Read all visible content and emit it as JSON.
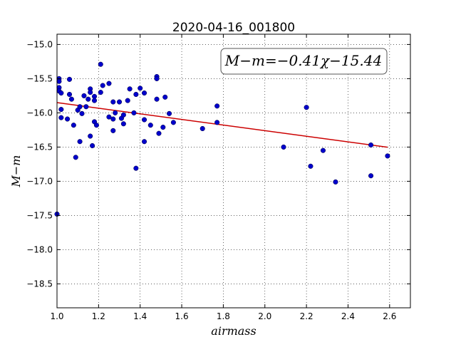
{
  "chart_data": {
    "type": "scatter",
    "title": "2020-04-16_001800",
    "xlabel": "airmass",
    "ylabel": "M−m",
    "xlim": [
      1.0,
      2.7
    ],
    "ylim": [
      -18.85,
      -14.85
    ],
    "y_inverted": true,
    "grid": true,
    "xticks": [
      "1.0",
      "1.2",
      "1.4",
      "1.6",
      "1.8",
      "2.0",
      "2.2",
      "2.4",
      "2.6"
    ],
    "yticks": [
      "−15.0",
      "−15.5",
      "−16.0",
      "−16.5",
      "−17.0",
      "−17.5",
      "−18.0",
      "−18.5"
    ],
    "annotation": "M−m=−0.41χ−15.44",
    "fit": {
      "slope": -0.41,
      "intercept": -15.44,
      "x_range": [
        1.0,
        2.59
      ],
      "color": "#cc0000"
    },
    "point_color": "#0000cc",
    "points": [
      {
        "x": 1.0,
        "y": -17.48
      },
      {
        "x": 1.01,
        "y": -15.5
      },
      {
        "x": 1.01,
        "y": -15.54
      },
      {
        "x": 1.01,
        "y": -15.63
      },
      {
        "x": 1.01,
        "y": -15.68
      },
      {
        "x": 1.02,
        "y": -15.71
      },
      {
        "x": 1.02,
        "y": -15.95
      },
      {
        "x": 1.02,
        "y": -16.07
      },
      {
        "x": 1.05,
        "y": -16.09
      },
      {
        "x": 1.06,
        "y": -15.51
      },
      {
        "x": 1.06,
        "y": -15.73
      },
      {
        "x": 1.07,
        "y": -15.8
      },
      {
        "x": 1.08,
        "y": -16.18
      },
      {
        "x": 1.09,
        "y": -16.65
      },
      {
        "x": 1.1,
        "y": -15.96
      },
      {
        "x": 1.11,
        "y": -15.91
      },
      {
        "x": 1.11,
        "y": -16.42
      },
      {
        "x": 1.12,
        "y": -16.01
      },
      {
        "x": 1.13,
        "y": -15.75
      },
      {
        "x": 1.14,
        "y": -15.91
      },
      {
        "x": 1.15,
        "y": -15.8
      },
      {
        "x": 1.16,
        "y": -15.65
      },
      {
        "x": 1.16,
        "y": -15.7
      },
      {
        "x": 1.16,
        "y": -16.34
      },
      {
        "x": 1.17,
        "y": -16.48
      },
      {
        "x": 1.18,
        "y": -15.76
      },
      {
        "x": 1.18,
        "y": -15.82
      },
      {
        "x": 1.18,
        "y": -16.13
      },
      {
        "x": 1.19,
        "y": -16.18
      },
      {
        "x": 1.21,
        "y": -15.29
      },
      {
        "x": 1.21,
        "y": -15.7
      },
      {
        "x": 1.22,
        "y": -15.6
      },
      {
        "x": 1.25,
        "y": -15.57
      },
      {
        "x": 1.25,
        "y": -16.06
      },
      {
        "x": 1.27,
        "y": -15.84
      },
      {
        "x": 1.27,
        "y": -16.09
      },
      {
        "x": 1.27,
        "y": -16.26
      },
      {
        "x": 1.28,
        "y": -16.0
      },
      {
        "x": 1.3,
        "y": -15.84
      },
      {
        "x": 1.31,
        "y": -16.08
      },
      {
        "x": 1.32,
        "y": -16.03
      },
      {
        "x": 1.32,
        "y": -16.16
      },
      {
        "x": 1.34,
        "y": -15.82
      },
      {
        "x": 1.35,
        "y": -15.65
      },
      {
        "x": 1.37,
        "y": -16.0
      },
      {
        "x": 1.38,
        "y": -15.73
      },
      {
        "x": 1.38,
        "y": -16.81
      },
      {
        "x": 1.4,
        "y": -15.64
      },
      {
        "x": 1.42,
        "y": -15.71
      },
      {
        "x": 1.42,
        "y": -16.1
      },
      {
        "x": 1.42,
        "y": -16.42
      },
      {
        "x": 1.45,
        "y": -16.18
      },
      {
        "x": 1.48,
        "y": -15.47
      },
      {
        "x": 1.48,
        "y": -15.5
      },
      {
        "x": 1.48,
        "y": -15.8
      },
      {
        "x": 1.49,
        "y": -16.3
      },
      {
        "x": 1.51,
        "y": -16.21
      },
      {
        "x": 1.52,
        "y": -15.77
      },
      {
        "x": 1.54,
        "y": -16.01
      },
      {
        "x": 1.56,
        "y": -16.14
      },
      {
        "x": 1.7,
        "y": -16.23
      },
      {
        "x": 1.77,
        "y": -15.9
      },
      {
        "x": 1.77,
        "y": -16.14
      },
      {
        "x": 2.09,
        "y": -16.5
      },
      {
        "x": 2.2,
        "y": -15.92
      },
      {
        "x": 2.22,
        "y": -16.78
      },
      {
        "x": 2.28,
        "y": -16.55
      },
      {
        "x": 2.34,
        "y": -17.01
      },
      {
        "x": 2.51,
        "y": -16.47
      },
      {
        "x": 2.51,
        "y": -16.92
      },
      {
        "x": 2.59,
        "y": -16.63
      }
    ]
  }
}
